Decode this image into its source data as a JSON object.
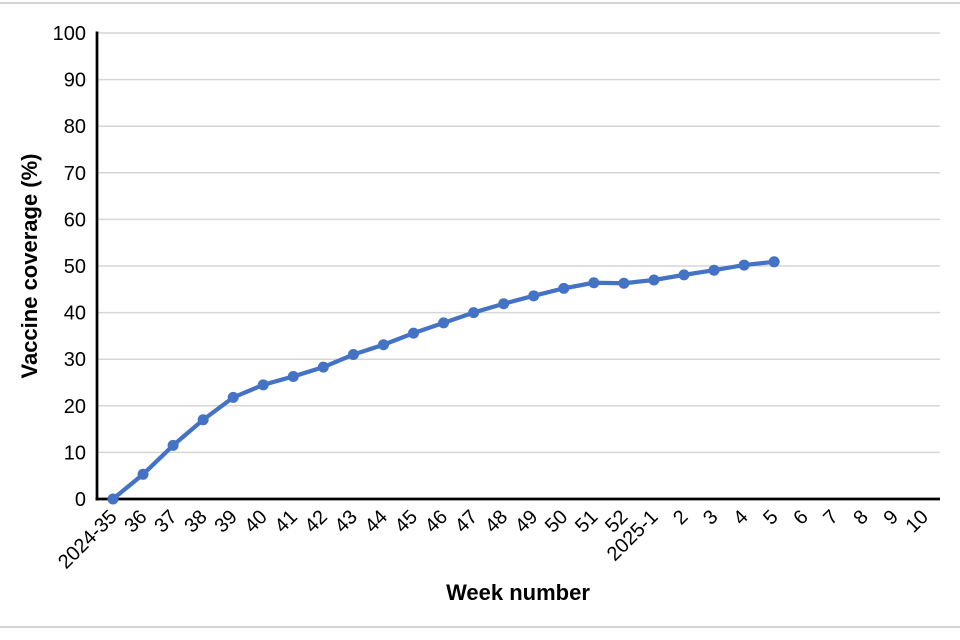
{
  "page": {
    "border_rule_color": "#d4d4d4",
    "background": "#ffffff"
  },
  "chart_data": {
    "type": "line",
    "title": "",
    "xlabel": "Week number",
    "ylabel": "Vaccine coverage (%)",
    "categories": [
      "2024-35",
      "36",
      "37",
      "38",
      "39",
      "40",
      "41",
      "42",
      "43",
      "44",
      "45",
      "46",
      "47",
      "48",
      "49",
      "50",
      "51",
      "52",
      "2025-1",
      "2",
      "3",
      "4",
      "5",
      "6",
      "7",
      "8",
      "9",
      "10"
    ],
    "series": [
      {
        "name": "Vaccine coverage",
        "color": "#4472C4",
        "marker": "circle",
        "values": [
          0,
          5.3,
          11.5,
          17,
          21.8,
          24.5,
          26.3,
          28.3,
          31,
          33.1,
          35.6,
          37.8,
          40,
          41.9,
          43.6,
          45.2,
          46.4,
          46.3,
          47,
          48.1,
          49.1,
          50.2,
          50.9,
          null,
          null,
          null,
          null,
          null
        ]
      }
    ],
    "ylim": [
      0,
      100
    ],
    "ytick_step": 10,
    "grid": "horizontal",
    "gridline_color": "#d6d6d6",
    "axis_color": "#000000",
    "legend": "none"
  }
}
